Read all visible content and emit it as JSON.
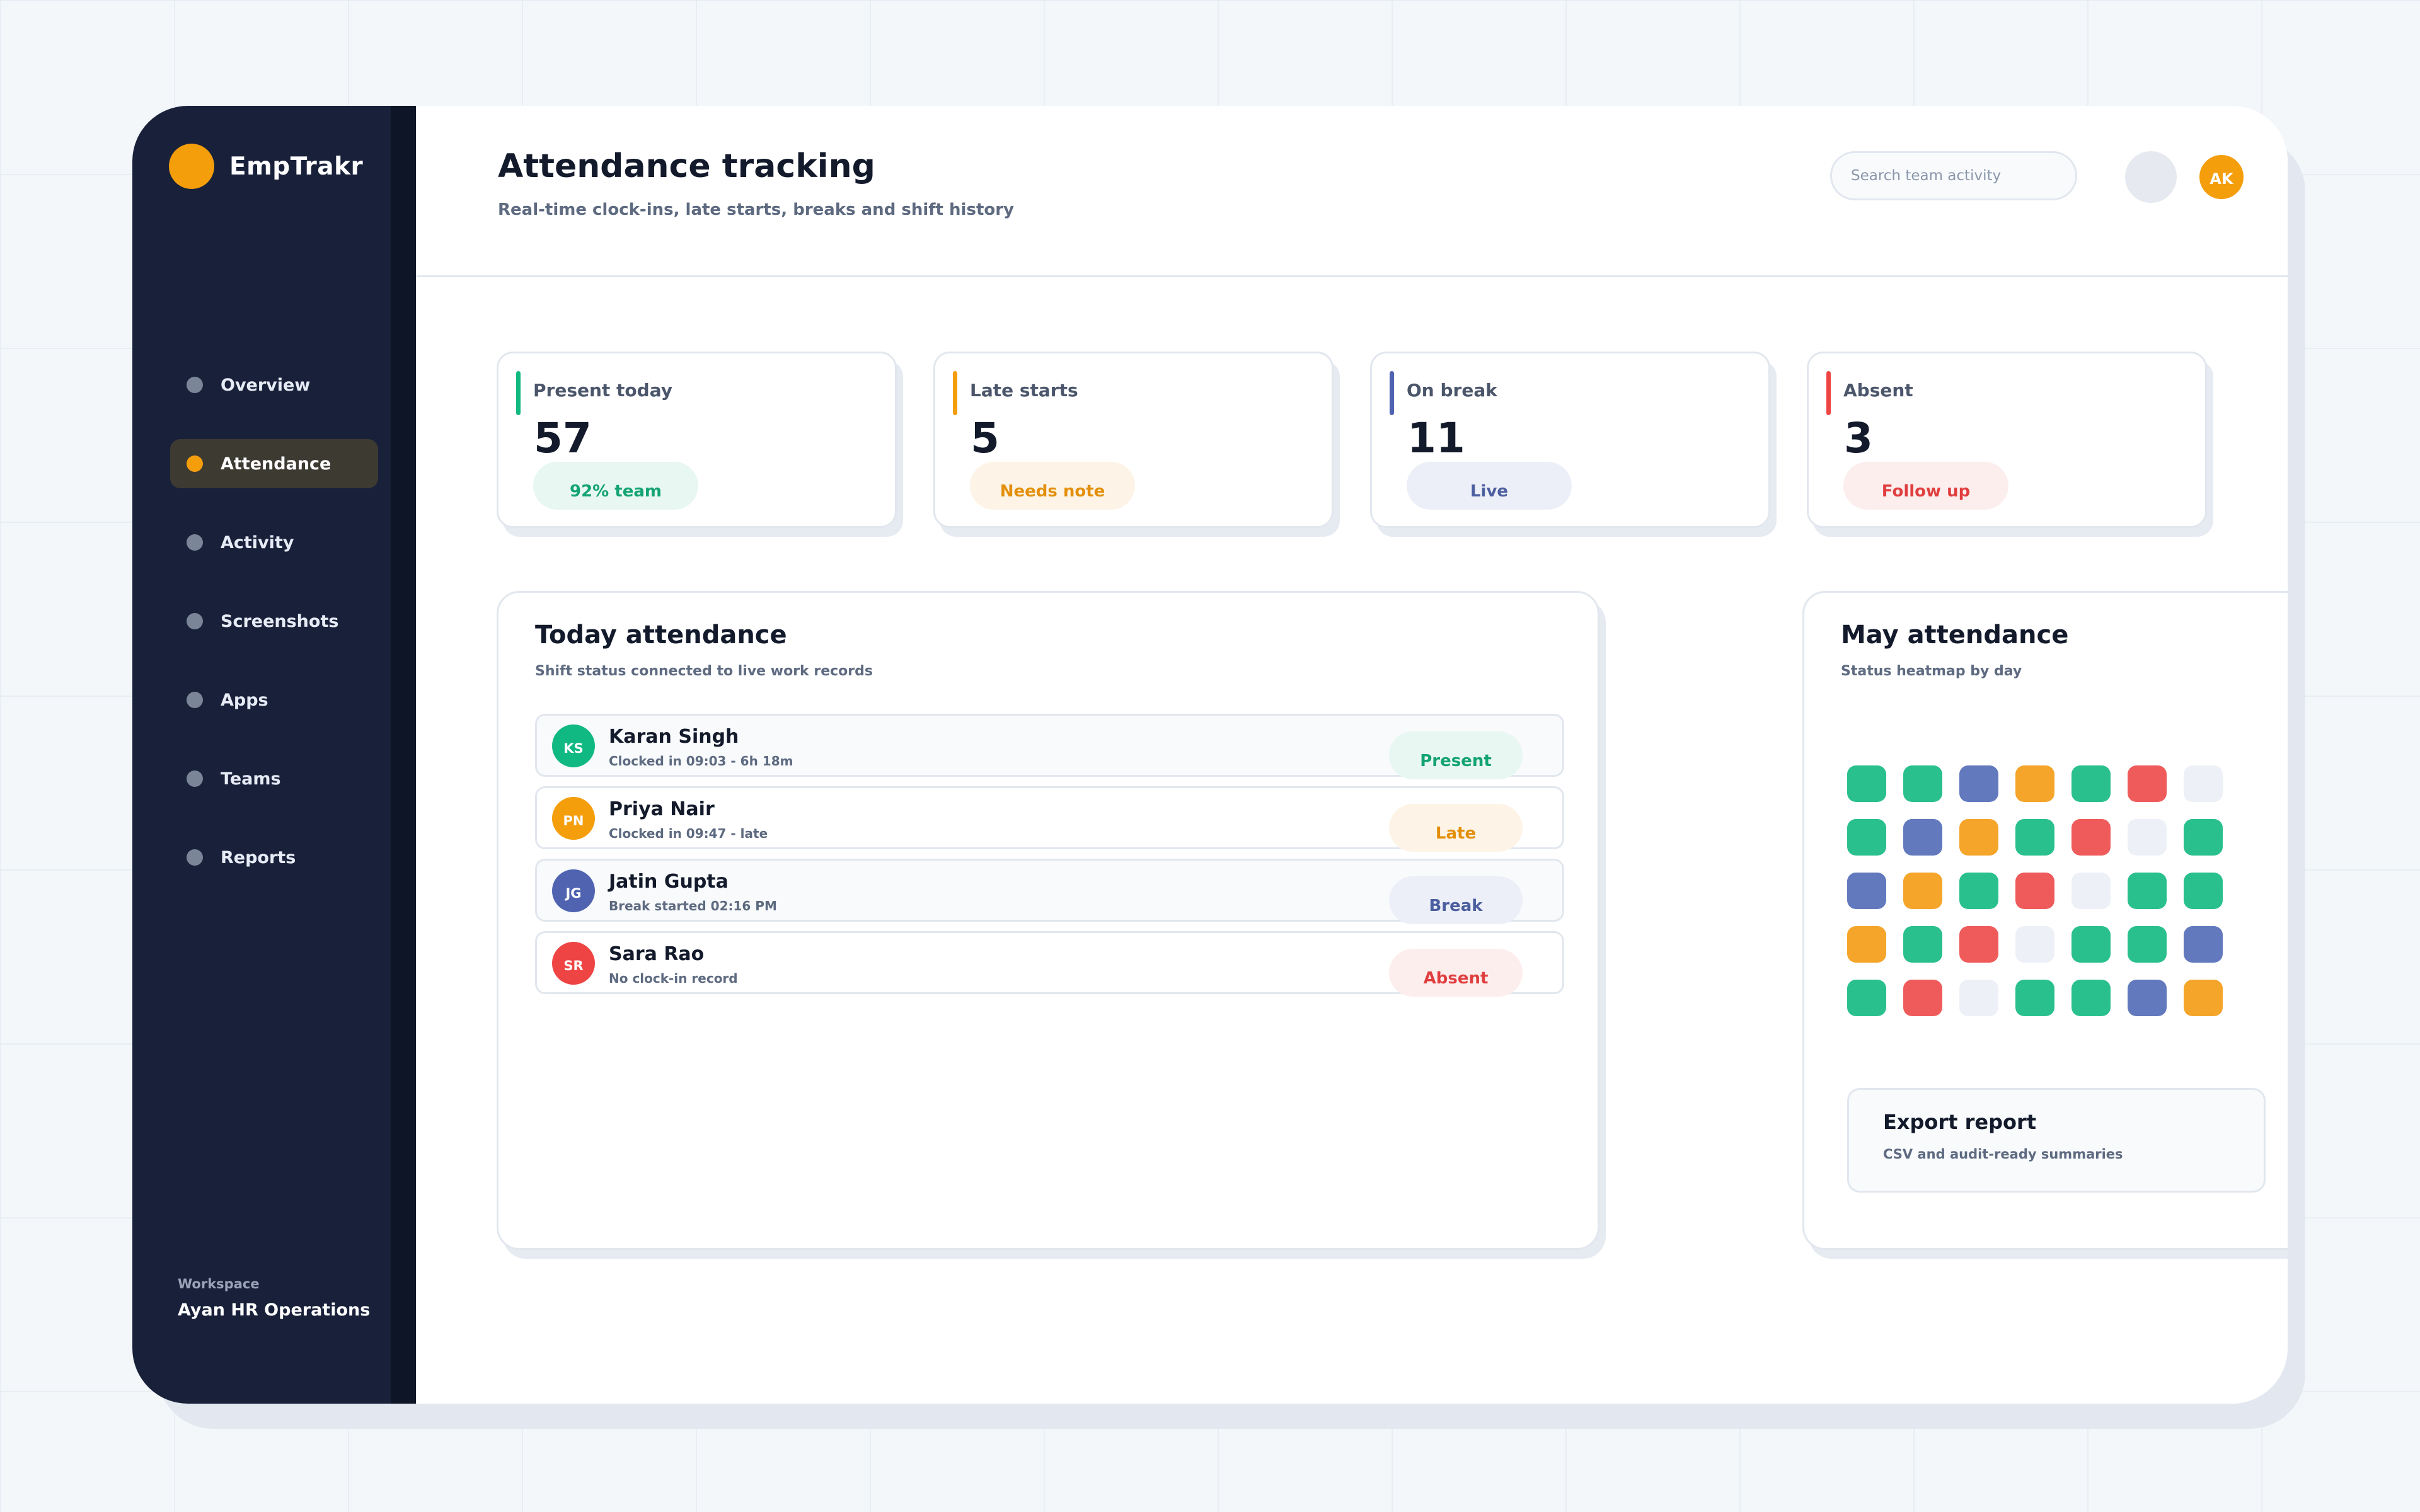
{
  "app": {
    "name": "EmpTrakr",
    "brand_color": "#f59e0b"
  },
  "sidebar": {
    "items": [
      {
        "label": "Overview",
        "icon": "dot-icon",
        "active": false
      },
      {
        "label": "Attendance",
        "icon": "dot-icon",
        "active": true
      },
      {
        "label": "Activity",
        "icon": "dot-icon",
        "active": false
      },
      {
        "label": "Screenshots",
        "icon": "dot-icon",
        "active": false
      },
      {
        "label": "Apps",
        "icon": "dot-icon",
        "active": false
      },
      {
        "label": "Teams",
        "icon": "dot-icon",
        "active": false
      },
      {
        "label": "Reports",
        "icon": "dot-icon",
        "active": false
      }
    ],
    "workspace_label": "Workspace",
    "workspace_name": "Ayan HR Operations"
  },
  "header": {
    "title": "Attendance tracking",
    "subtitle": "Real-time clock-ins, late starts, breaks and shift history",
    "search_placeholder": "Search team activity",
    "user_initials": "AK"
  },
  "stats": [
    {
      "label": "Present today",
      "value": "57",
      "pill": "92% team",
      "accent": "#10b981",
      "pill_bg": "#e8f7f1",
      "pill_fg": "#13a372"
    },
    {
      "label": "Late starts",
      "value": "5",
      "pill": "Needs note",
      "accent": "#f59e0b",
      "pill_bg": "#fdf4e7",
      "pill_fg": "#e38f0a"
    },
    {
      "label": "On break",
      "value": "11",
      "pill": "Live",
      "accent": "#4f63b0",
      "pill_bg": "#eceff7",
      "pill_fg": "#4b5e9f"
    },
    {
      "label": "Absent",
      "value": "3",
      "pill": "Follow up",
      "accent": "#ef4444",
      "pill_bg": "#fdeeee",
      "pill_fg": "#e03e3e"
    }
  ],
  "today": {
    "title": "Today attendance",
    "subtitle": "Shift status connected to live work records",
    "rows": [
      {
        "initials": "KS",
        "name": "Karan Singh",
        "detail": "Clocked in 09:03 - 6h 18m",
        "status": "Present",
        "avatar_color": "#10b981",
        "pill_bg": "#e8f7f1",
        "pill_fg": "#13a372"
      },
      {
        "initials": "PN",
        "name": "Priya Nair",
        "detail": "Clocked in 09:47 - late",
        "status": "Late",
        "avatar_color": "#f59e0b",
        "pill_bg": "#fdf4e7",
        "pill_fg": "#e38f0a"
      },
      {
        "initials": "JG",
        "name": "Jatin Gupta",
        "detail": "Break started 02:16 PM",
        "status": "Break",
        "avatar_color": "#4f63b0",
        "pill_bg": "#eceff7",
        "pill_fg": "#4b5e9f"
      },
      {
        "initials": "SR",
        "name": "Sara Rao",
        "detail": "No clock-in record",
        "status": "Absent",
        "avatar_color": "#ef4444",
        "pill_bg": "#fdeeee",
        "pill_fg": "#e03e3e"
      }
    ]
  },
  "heatmap": {
    "title": "May attendance",
    "subtitle": "Status heatmap by day",
    "status_colors": {
      "present": "#29c08e",
      "late": "#f4a52a",
      "break": "#6279bd",
      "absent": "#ef5b5b",
      "none": "#edf1f7"
    },
    "rows": [
      [
        "present",
        "present",
        "break",
        "late",
        "present",
        "absent",
        "none"
      ],
      [
        "present",
        "break",
        "late",
        "present",
        "absent",
        "none",
        "present"
      ],
      [
        "break",
        "late",
        "present",
        "absent",
        "none",
        "present",
        "present"
      ],
      [
        "late",
        "present",
        "absent",
        "none",
        "present",
        "present",
        "break"
      ],
      [
        "present",
        "absent",
        "none",
        "present",
        "present",
        "break",
        "late"
      ]
    ]
  },
  "export": {
    "title": "Export report",
    "subtitle": "CSV and audit-ready summaries"
  }
}
